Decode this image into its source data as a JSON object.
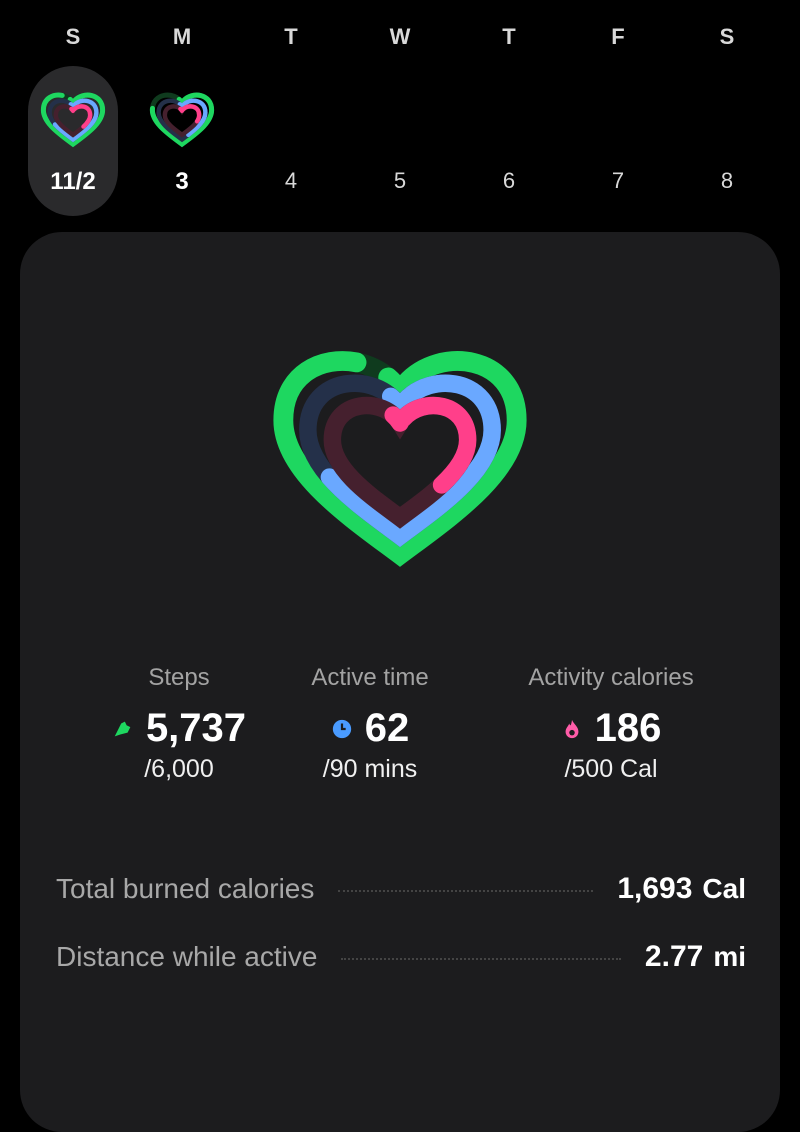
{
  "colors": {
    "green": "#1ed760",
    "green_track": "#0f3b1e",
    "blue": "#6aa8ff",
    "blue_track": "#243049",
    "pink": "#ff3f8a",
    "pink_track": "#45202e"
  },
  "week": [
    {
      "letter": "S",
      "date": "11/2",
      "selected": true,
      "rings": {
        "steps": 0.956,
        "active": 0.689,
        "calories": 0.372
      }
    },
    {
      "letter": "M",
      "date": "3",
      "selected": false,
      "rings": {
        "steps": 0.8,
        "active": 0.45,
        "calories": 0.3
      }
    },
    {
      "letter": "T",
      "date": "4"
    },
    {
      "letter": "W",
      "date": "5"
    },
    {
      "letter": "T",
      "date": "6"
    },
    {
      "letter": "F",
      "date": "7"
    },
    {
      "letter": "S",
      "date": "8"
    }
  ],
  "stats": [
    {
      "label": "Steps",
      "value": "5,737",
      "goal": "/6,000",
      "icon": "shoe-icon",
      "progress": 0.956
    },
    {
      "label": "Active time",
      "value": "62",
      "goal": "/90 mins",
      "icon": "clock-icon",
      "progress": 0.689
    },
    {
      "label": "Activity calories",
      "value": "186",
      "goal": "/500 Cal",
      "icon": "flame-icon",
      "progress": 0.372
    }
  ],
  "summary": [
    {
      "label": "Total burned calories",
      "value": "1,693",
      "unit": "Cal"
    },
    {
      "label": "Distance while active",
      "value": "2.77",
      "unit": "mi"
    }
  ]
}
